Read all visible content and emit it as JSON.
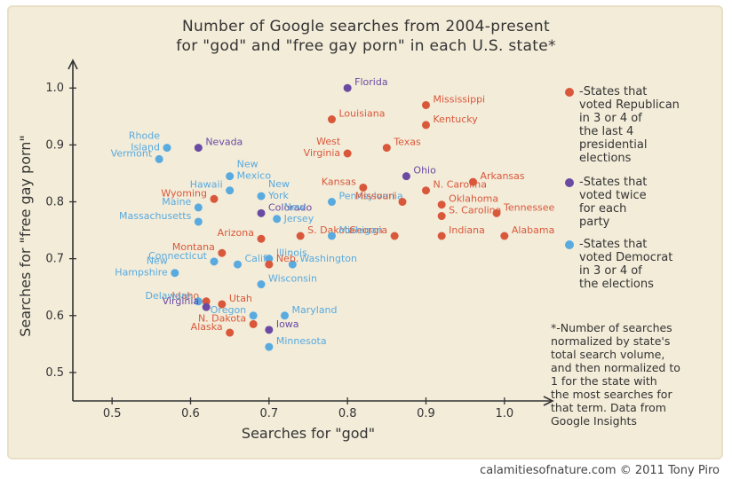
{
  "title_lines": [
    "Number of Google searches from 2004-present",
    "for \"god\" and \"free gay porn\" in each U.S. state*"
  ],
  "legend": [
    {
      "text": "-States that\nvoted Republican\nin 3 or 4 of\nthe last 4\npresidential\nelections",
      "color": "#d9583b"
    },
    {
      "text": "-States that\nvoted twice\nfor each\nparty",
      "color": "#6a4aa3"
    },
    {
      "text": "-States that\nvoted Democrat\nin 3 or 4 of\nthe elections",
      "color": "#58aadf"
    }
  ],
  "footnote": "*-Number of searches\nnormalized by state's\ntotal search volume,\nand then normalized to\n1 for the state with\nthe most searches for\nthat term. Data from\nGoogle Insights",
  "credit": "calamitiesofnature.com © 2011 Tony Piro",
  "colors": {
    "republican": "#d9583b",
    "swing": "#6a4aa3",
    "democrat": "#58aadf",
    "ink": "#333333"
  },
  "chart_data": {
    "type": "scatter",
    "title": "Number of Google searches from 2004-present for \"god\" and \"free gay porn\" in each U.S. state*",
    "xlabel": "Searches for \"god\"",
    "ylabel": "Searches for \"free gay porn\"",
    "xlim": [
      0.45,
      1.05
    ],
    "ylim": [
      0.45,
      1.03
    ],
    "xticks": [
      0.5,
      0.6,
      0.7,
      0.8,
      0.9,
      1.0
    ],
    "xtick_labels": [
      "0.5",
      "0.6",
      "0.7",
      "0.8",
      "0.9",
      "1.0"
    ],
    "yticks": [
      0.5,
      0.6,
      0.7,
      0.8,
      0.9,
      1.0
    ],
    "ytick_labels": [
      "0.5",
      "0.6",
      "0.7",
      "0.8",
      "0.9",
      "1.0"
    ],
    "points": [
      {
        "label": "Florida",
        "x": 0.8,
        "y": 1.0,
        "group": "swing"
      },
      {
        "label": "Mississippi",
        "x": 0.9,
        "y": 0.97,
        "group": "republican"
      },
      {
        "label": "Louisiana",
        "x": 0.78,
        "y": 0.945,
        "group": "republican"
      },
      {
        "label": "Kentucky",
        "x": 0.9,
        "y": 0.935,
        "group": "republican"
      },
      {
        "label": "Texas",
        "x": 0.85,
        "y": 0.895,
        "group": "republican"
      },
      {
        "label": "West Virginia",
        "x": 0.8,
        "y": 0.885,
        "group": "republican"
      },
      {
        "label": "Rhode Island",
        "x": 0.57,
        "y": 0.895,
        "group": "democrat"
      },
      {
        "label": "Nevada",
        "x": 0.61,
        "y": 0.895,
        "group": "swing"
      },
      {
        "label": "Vermont",
        "x": 0.56,
        "y": 0.875,
        "group": "democrat"
      },
      {
        "label": "New Mexico",
        "x": 0.65,
        "y": 0.845,
        "group": "democrat"
      },
      {
        "label": "Ohio",
        "x": 0.875,
        "y": 0.845,
        "group": "swing"
      },
      {
        "label": "Arkansas",
        "x": 0.96,
        "y": 0.835,
        "group": "republican"
      },
      {
        "label": "Kansas",
        "x": 0.82,
        "y": 0.825,
        "group": "republican"
      },
      {
        "label": "N. Carolina",
        "x": 0.9,
        "y": 0.82,
        "group": "republican"
      },
      {
        "label": "Hawaii",
        "x": 0.65,
        "y": 0.82,
        "group": "democrat"
      },
      {
        "label": "New York",
        "x": 0.69,
        "y": 0.81,
        "group": "democrat"
      },
      {
        "label": "Wyoming",
        "x": 0.63,
        "y": 0.805,
        "group": "republican"
      },
      {
        "label": "Pennsylvania",
        "x": 0.78,
        "y": 0.8,
        "group": "democrat"
      },
      {
        "label": "Missouri",
        "x": 0.87,
        "y": 0.8,
        "group": "republican"
      },
      {
        "label": "Oklahoma",
        "x": 0.92,
        "y": 0.795,
        "group": "republican"
      },
      {
        "label": "Colorado",
        "x": 0.69,
        "y": 0.78,
        "group": "swing"
      },
      {
        "label": "Maine",
        "x": 0.61,
        "y": 0.79,
        "group": "democrat"
      },
      {
        "label": "New Jersey",
        "x": 0.71,
        "y": 0.77,
        "group": "democrat"
      },
      {
        "label": "Tennessee",
        "x": 0.99,
        "y": 0.78,
        "group": "republican"
      },
      {
        "label": "Massachusetts",
        "x": 0.61,
        "y": 0.765,
        "group": "democrat"
      },
      {
        "label": "S. Carolina",
        "x": 0.92,
        "y": 0.775,
        "group": "republican"
      },
      {
        "label": "Arizona",
        "x": 0.69,
        "y": 0.735,
        "group": "republican"
      },
      {
        "label": "S. Dakota",
        "x": 0.74,
        "y": 0.74,
        "group": "republican"
      },
      {
        "label": "Georgia",
        "x": 0.86,
        "y": 0.74,
        "group": "republican"
      },
      {
        "label": "Michigan",
        "x": 0.78,
        "y": 0.74,
        "group": "democrat"
      },
      {
        "label": "Indiana",
        "x": 0.92,
        "y": 0.74,
        "group": "republican"
      },
      {
        "label": "Alabama",
        "x": 1.0,
        "y": 0.74,
        "group": "republican"
      },
      {
        "label": "Montana",
        "x": 0.64,
        "y": 0.71,
        "group": "republican"
      },
      {
        "label": "Connecticut",
        "x": 0.63,
        "y": 0.695,
        "group": "democrat"
      },
      {
        "label": "Illinois",
        "x": 0.7,
        "y": 0.7,
        "group": "democrat"
      },
      {
        "label": "Washington",
        "x": 0.73,
        "y": 0.69,
        "group": "democrat"
      },
      {
        "label": "Calif.",
        "x": 0.66,
        "y": 0.69,
        "group": "democrat"
      },
      {
        "label": "Neb.",
        "x": 0.7,
        "y": 0.69,
        "group": "republican"
      },
      {
        "label": "New Hampshire",
        "x": 0.58,
        "y": 0.675,
        "group": "democrat"
      },
      {
        "label": "Wisconsin",
        "x": 0.69,
        "y": 0.655,
        "group": "democrat"
      },
      {
        "label": "Idaho",
        "x": 0.62,
        "y": 0.625,
        "group": "republican"
      },
      {
        "label": "Delaware",
        "x": 0.61,
        "y": 0.625,
        "group": "democrat"
      },
      {
        "label": "Utah",
        "x": 0.64,
        "y": 0.62,
        "group": "republican"
      },
      {
        "label": "Virginia",
        "x": 0.62,
        "y": 0.615,
        "group": "swing"
      },
      {
        "label": "Maryland",
        "x": 0.72,
        "y": 0.6,
        "group": "democrat"
      },
      {
        "label": "Oregon",
        "x": 0.68,
        "y": 0.6,
        "group": "democrat"
      },
      {
        "label": "N. Dakota",
        "x": 0.68,
        "y": 0.585,
        "group": "republican"
      },
      {
        "label": "Alaska",
        "x": 0.65,
        "y": 0.57,
        "group": "republican"
      },
      {
        "label": "Iowa",
        "x": 0.7,
        "y": 0.575,
        "group": "swing"
      },
      {
        "label": "Minnesota",
        "x": 0.7,
        "y": 0.545,
        "group": "democrat"
      }
    ]
  }
}
